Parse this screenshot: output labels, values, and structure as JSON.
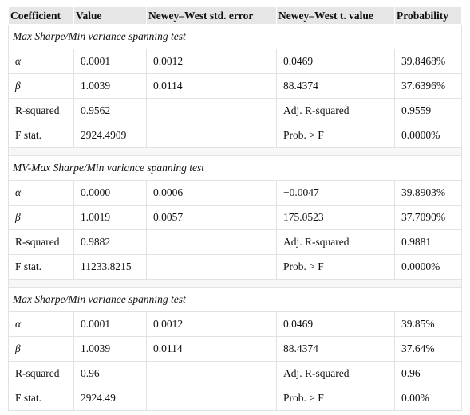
{
  "header": [
    "Coefficient",
    "Value",
    "Newey–West std. error",
    "Newey–West t. value",
    "Probability"
  ],
  "sections": [
    {
      "title": "Max Sharpe/Min variance spanning test",
      "rows": [
        [
          "α",
          "0.0001",
          "0.0012",
          "0.0469",
          "39.8468%"
        ],
        [
          "β",
          "1.0039",
          "0.0114",
          "88.4374",
          "37.6396%"
        ],
        [
          "R-squared",
          "0.9562",
          null,
          "Adj. R-squared",
          "0.9559"
        ],
        [
          "F stat.",
          "2924.4909",
          null,
          "Prob. > F",
          "0.0000%"
        ]
      ]
    },
    {
      "title": "MV-Max Sharpe/Min variance spanning test",
      "rows": [
        [
          "α",
          "0.0000",
          "0.0006",
          "−0.0047",
          "39.8903%"
        ],
        [
          "β",
          "1.0019",
          "0.0057",
          "175.0523",
          "37.7090%"
        ],
        [
          "R-squared",
          "0.9882",
          null,
          "Adj. R-squared",
          "0.9881"
        ],
        [
          "F stat.",
          "11233.8215",
          null,
          "Prob. > F",
          "0.0000%"
        ]
      ]
    },
    {
      "title": "Max Sharpe/Min variance spanning test",
      "rows": [
        [
          "α",
          "0.0001",
          "0.0012",
          "0.0469",
          "39.85%"
        ],
        [
          "β",
          "1.0039",
          "0.0114",
          "88.4374",
          "37.64%"
        ],
        [
          "R-squared",
          "0.96",
          null,
          "Adj. R-squared",
          "0.96"
        ],
        [
          "F stat.",
          "2924.49",
          null,
          "Prob. > F",
          "0.00%"
        ]
      ]
    }
  ]
}
